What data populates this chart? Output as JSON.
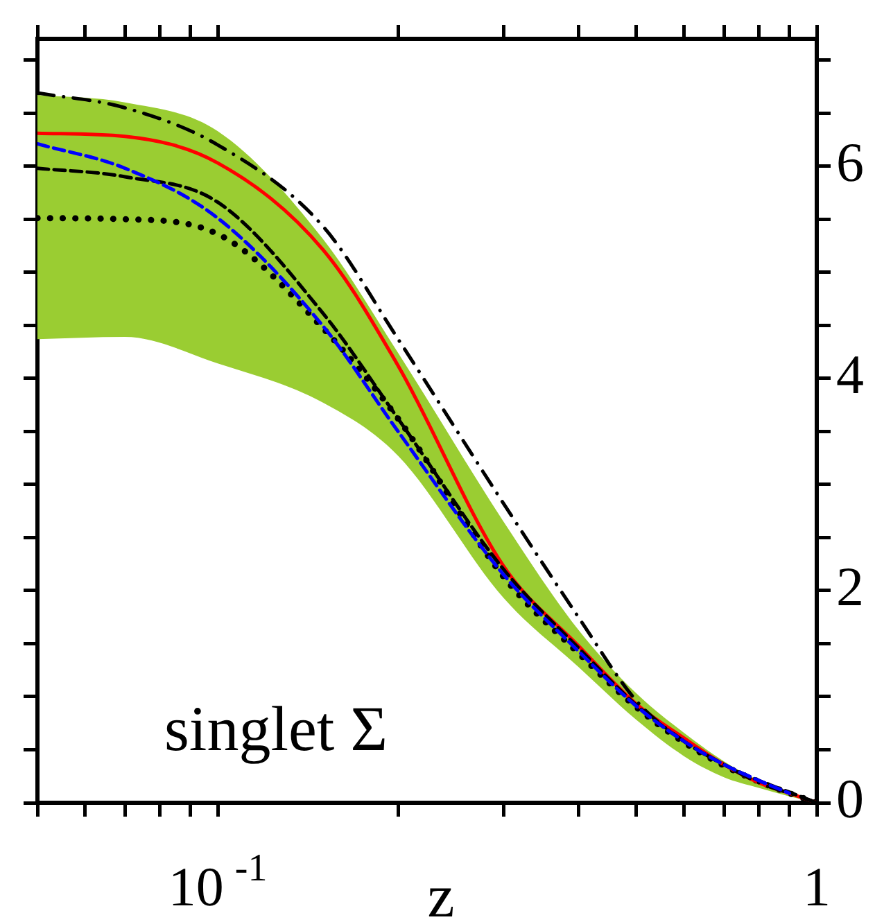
{
  "chart_data": {
    "type": "line",
    "xlabel": "z",
    "log": "x",
    "xlim": [
      0.05,
      1
    ],
    "xticks": [
      {
        "value": 0.05,
        "label": null
      },
      {
        "value": 0.06,
        "label": null
      },
      {
        "value": 0.07,
        "label": null
      },
      {
        "value": 0.08,
        "label": null
      },
      {
        "value": 0.09,
        "label": null
      },
      {
        "value": 0.1,
        "label": "10$^{-1}$"
      },
      {
        "value": 0.2,
        "label": null
      },
      {
        "value": 0.3,
        "label": null
      },
      {
        "value": 0.4,
        "label": null
      },
      {
        "value": 0.5,
        "label": null
      },
      {
        "value": 0.6,
        "label": null
      },
      {
        "value": 0.7,
        "label": null
      },
      {
        "value": 0.8,
        "label": null
      },
      {
        "value": 0.9,
        "label": null
      },
      1
    ],
    "ylim": [
      0,
      7.2
    ],
    "yticks": [
      0,
      {
        "value": 0.5,
        "label": null
      },
      {
        "value": 1,
        "label": null
      },
      {
        "value": 1.5,
        "label": null
      },
      2,
      {
        "value": 2.5,
        "label": null
      },
      {
        "value": 3,
        "label": null
      },
      {
        "value": 3.5,
        "label": null
      },
      4,
      {
        "value": 4.5,
        "label": null
      },
      {
        "value": 5,
        "label": null
      },
      {
        "value": 5.5,
        "label": null
      },
      6,
      {
        "value": 6.5,
        "label": null
      },
      {
        "value": 7,
        "label": null
      }
    ],
    "x": [
      0.05,
      0.07,
      0.1,
      0.15,
      0.2,
      0.3,
      0.4,
      0.5,
      0.6,
      0.7,
      0.8,
      0.9,
      1
    ],
    "series": [
      {
        "type": "area",
        "color": "#9acd32",
        "values": [
          null,
          null,
          null,
          null,
          null,
          null,
          null,
          null,
          null,
          null,
          null,
          null,
          null
        ],
        "upper": [
          6.67,
          6.6,
          6.33,
          5.31,
          4.24,
          2.65,
          1.63,
          1.03,
          0.66,
          0.39,
          0.21,
          0.09,
          0
        ],
        "lower": [
          4.37,
          4.39,
          4.14,
          3.77,
          3.27,
          1.93,
          1.28,
          0.78,
          0.44,
          0.24,
          0.14,
          0.06,
          0
        ]
      },
      {
        "color": "#000000",
        "line_style": "dashdot",
        "values": [
          6.69,
          6.55,
          6.2,
          5.43,
          4.37,
          2.82,
          1.75,
          0.96,
          0.58,
          0.36,
          0.19,
          0.09,
          0
        ]
      },
      {
        "color": "#ff0000",
        "line_style": "solid",
        "values": [
          6.31,
          6.28,
          6.03,
          5.21,
          4.12,
          2.23,
          1.48,
          0.93,
          0.61,
          0.36,
          0.19,
          0.09,
          0
        ]
      },
      {
        "color": "#0000ff",
        "line_style": "dashed",
        "values": [
          6.21,
          5.98,
          5.51,
          4.49,
          3.5,
          2.15,
          1.43,
          0.91,
          0.58,
          0.36,
          0.21,
          0.09,
          null
        ]
      },
      {
        "color": "#000000",
        "line_style": "dashed",
        "values": [
          5.98,
          5.9,
          5.66,
          4.61,
          3.62,
          2.2,
          1.46,
          0.92,
          0.58,
          0.36,
          0.21,
          0.1,
          0
        ]
      },
      {
        "color": "#000000",
        "line_style": "dotted",
        "values": [
          5.51,
          5.5,
          5.36,
          4.47,
          3.62,
          2.13,
          1.41,
          0.9,
          0.57,
          0.35,
          0.2,
          0.09,
          0
        ]
      }
    ],
    "annotations": [
      "singlet Σ"
    ],
    "grid": false,
    "legend": false
  }
}
